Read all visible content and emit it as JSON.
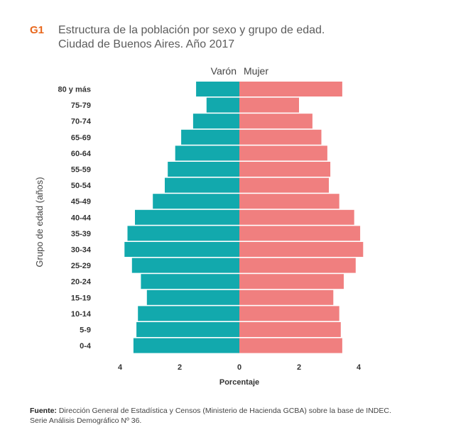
{
  "header": {
    "figure_code": "G1",
    "title_line1": "Estructura de la población por sexo y grupo de edad.",
    "title_line2": "Ciudad de Buenos Aires. Año 2017"
  },
  "chart_data": {
    "type": "bar",
    "orientation": "horizontal",
    "subtype": "population-pyramid",
    "categories": [
      "80 y más",
      "75-79",
      "70-74",
      "65-69",
      "60-64",
      "55-59",
      "50-54",
      "45-49",
      "40-44",
      "35-39",
      "30-34",
      "25-29",
      "20-24",
      "15-19",
      "10-14",
      "5-9",
      "0-4"
    ],
    "series": [
      {
        "name": "Varón",
        "color": "#12a9ad",
        "side": "left",
        "values": [
          1.45,
          1.1,
          1.55,
          1.95,
          2.15,
          2.4,
          2.5,
          2.9,
          3.5,
          3.75,
          3.85,
          3.6,
          3.3,
          3.1,
          3.4,
          3.45,
          3.55
        ]
      },
      {
        "name": "Mujer",
        "color": "#f07f7f",
        "side": "right",
        "values": [
          3.45,
          2.0,
          2.45,
          2.75,
          2.95,
          3.05,
          3.0,
          3.35,
          3.85,
          4.05,
          4.15,
          3.9,
          3.5,
          3.15,
          3.35,
          3.4,
          3.45
        ]
      }
    ],
    "xlabel": "Porcentaje",
    "ylabel": "Grupo de edad (años)",
    "xlim": [
      -4.5,
      4.5
    ],
    "xticks": [
      -4,
      -2,
      0,
      2,
      4
    ],
    "xtick_labels": [
      "4",
      "2",
      "0",
      "2",
      "4"
    ],
    "legend": [
      "Varón",
      "Mujer"
    ],
    "legend_position": "top-center",
    "grid": false
  },
  "footer": {
    "source_label": "Fuente:",
    "source_text": " Dirección General de Estadística y Censos (Ministerio de Hacienda GCBA) sobre la base de INDEC.",
    "source_line2": "Serie Análisis Demográfico Nº 36."
  }
}
